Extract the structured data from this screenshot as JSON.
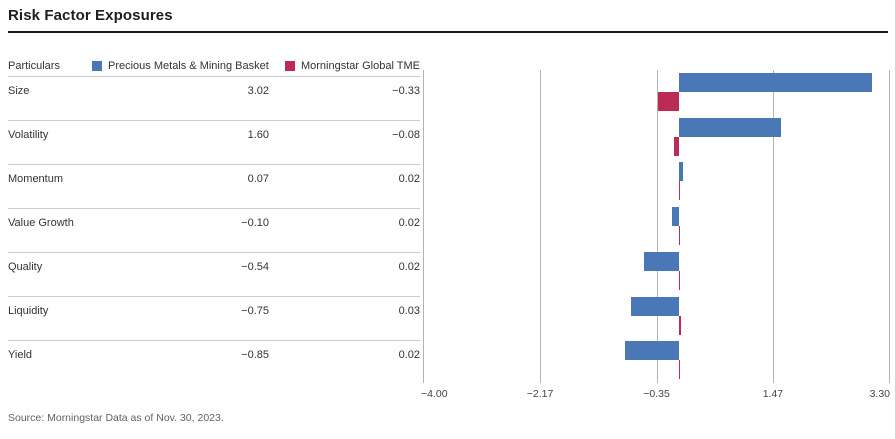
{
  "header": {
    "title": "Risk Factor Exposures"
  },
  "table": {
    "particulars_label": "Particulars",
    "legend": [
      {
        "label": "Precious Metals & Mining Basket",
        "color": "#4a77b5"
      },
      {
        "label": "Morningstar Global TME",
        "color": "#bb2b55"
      }
    ],
    "rows": [
      {
        "label": "Size",
        "basket": "3.02",
        "tme": "−0.33"
      },
      {
        "label": "Volatility",
        "basket": "1.60",
        "tme": "−0.08"
      },
      {
        "label": "Momentum",
        "basket": "0.07",
        "tme": "0.02"
      },
      {
        "label": "Value Growth",
        "basket": "−0.10",
        "tme": "0.02"
      },
      {
        "label": "Quality",
        "basket": "−0.54",
        "tme": "0.02"
      },
      {
        "label": "Liquidity",
        "basket": "−0.75",
        "tme": "0.03"
      },
      {
        "label": "Yield",
        "basket": "−0.85",
        "tme": "0.02"
      }
    ]
  },
  "chart_data": {
    "type": "bar",
    "orientation": "horizontal",
    "title": "Risk Factor Exposures",
    "categories": [
      "Size",
      "Volatility",
      "Momentum",
      "Value Growth",
      "Quality",
      "Liquidity",
      "Yield"
    ],
    "series": [
      {
        "name": "Precious Metals & Mining Basket",
        "color": "#4a77b5",
        "values": [
          3.02,
          1.6,
          0.07,
          -0.1,
          -0.54,
          -0.75,
          -0.85
        ]
      },
      {
        "name": "Morningstar Global TME",
        "color": "#bb2b55",
        "values": [
          -0.33,
          -0.08,
          0.02,
          0.02,
          0.02,
          0.03,
          0.02
        ]
      }
    ],
    "xlim": [
      -4.0,
      3.3
    ],
    "xticks": [
      {
        "value": -4.0,
        "label": "−4.00"
      },
      {
        "value": -2.17,
        "label": "−2.17"
      },
      {
        "value": -0.35,
        "label": "−0.35"
      },
      {
        "value": 1.47,
        "label": "1.47"
      },
      {
        "value": 3.3,
        "label": "3.30"
      }
    ],
    "grid": "vertical",
    "legend_position": "top"
  },
  "footer": {
    "source": "Source: Morningstar Data as of Nov. 30, 2023."
  }
}
